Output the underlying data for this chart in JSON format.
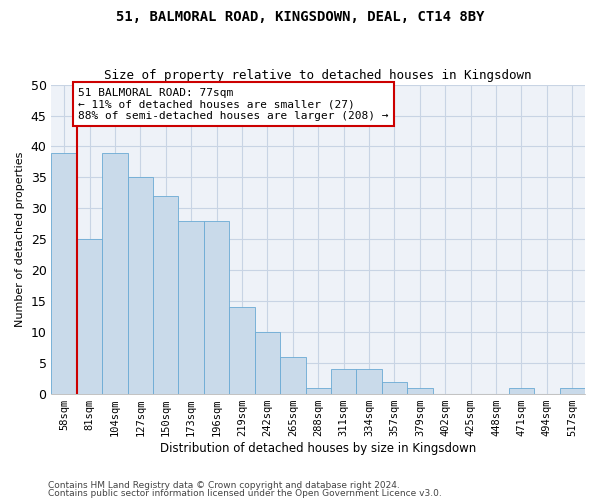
{
  "title1": "51, BALMORAL ROAD, KINGSDOWN, DEAL, CT14 8BY",
  "title2": "Size of property relative to detached houses in Kingsdown",
  "xlabel": "Distribution of detached houses by size in Kingsdown",
  "ylabel": "Number of detached properties",
  "categories": [
    "58sqm",
    "81sqm",
    "104sqm",
    "127sqm",
    "150sqm",
    "173sqm",
    "196sqm",
    "219sqm",
    "242sqm",
    "265sqm",
    "288sqm",
    "311sqm",
    "334sqm",
    "357sqm",
    "379sqm",
    "402sqm",
    "425sqm",
    "448sqm",
    "471sqm",
    "494sqm",
    "517sqm"
  ],
  "values": [
    39,
    25,
    39,
    35,
    32,
    28,
    28,
    14,
    10,
    6,
    1,
    4,
    4,
    2,
    1,
    0,
    0,
    0,
    1,
    0,
    1
  ],
  "bar_color": "#c9daea",
  "bar_edge_color": "#6aaad4",
  "line_x_index": 0.5,
  "property_line_label": "51 BALMORAL ROAD: 77sqm",
  "annotation_line1": "← 11% of detached houses are smaller (27)",
  "annotation_line2": "88% of semi-detached houses are larger (208) →",
  "annotation_box_color": "#ffffff",
  "annotation_box_edge": "#cc0000",
  "line_color": "#cc0000",
  "ylim": [
    0,
    50
  ],
  "yticks": [
    0,
    5,
    10,
    15,
    20,
    25,
    30,
    35,
    40,
    45,
    50
  ],
  "grid_color": "#c8d4e4",
  "footnote1": "Contains HM Land Registry data © Crown copyright and database right 2024.",
  "footnote2": "Contains public sector information licensed under the Open Government Licence v3.0.",
  "title1_fontsize": 10,
  "title2_fontsize": 9,
  "xlabel_fontsize": 8.5,
  "ylabel_fontsize": 8,
  "tick_fontsize": 7.5
}
